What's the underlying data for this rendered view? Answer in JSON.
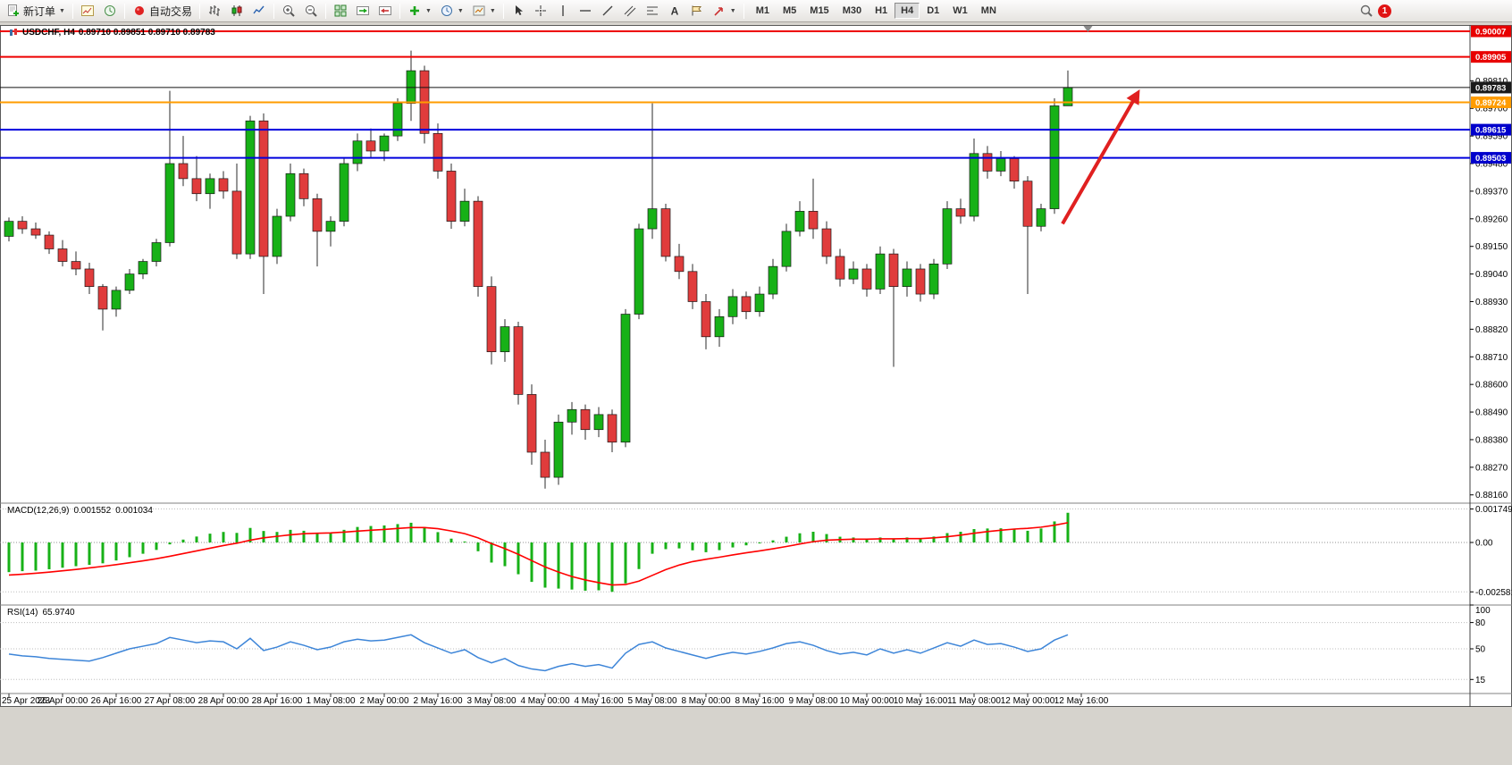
{
  "toolbar": {
    "new_order": "新订单",
    "auto_trading": "自动交易",
    "timeframes": [
      "M1",
      "M5",
      "M15",
      "M30",
      "H1",
      "H4",
      "D1",
      "W1",
      "MN"
    ],
    "active_timeframe": "H4",
    "notification_badge": "1"
  },
  "chart_header": {
    "symbol_period": "USDCHF, H4",
    "ohlc": "0.89710 0.89851 0.89710 0.89783"
  },
  "macd_panel": {
    "label": "MACD(12,26,9)",
    "main_value": "0.001552",
    "signal_value": "0.001034"
  },
  "rsi_panel": {
    "label": "RSI(14)",
    "value": "65.9740"
  },
  "chart_data": {
    "type": "candlestick",
    "symbol": "USDCHF",
    "timeframe": "H4",
    "current_ohlc": {
      "open": 0.8971,
      "high": 0.89851,
      "low": 0.8971,
      "close": 0.89783
    },
    "colors": {
      "bull": "#17b117",
      "bear": "#e03c3c",
      "wick": "#2b2b2b",
      "macd_hist": "#17b117",
      "macd_signal": "#ff0000",
      "rsi_line": "#3d85d8",
      "arrow": "#e02020"
    },
    "price_range_visible": [
      0.88127,
      0.90032
    ],
    "axis_ticks": [
      0.8981,
      0.897,
      0.8959,
      0.8948,
      0.8937,
      0.8926,
      0.8915,
      0.8904,
      0.8893,
      0.8882,
      0.8871,
      0.886,
      0.8849,
      0.8838,
      0.8827,
      0.8816
    ],
    "hlines": [
      {
        "price": 0.90007,
        "color": "#ee0000",
        "width": 2,
        "badge": "0.90007",
        "badge_bg": "#e80000"
      },
      {
        "price": 0.89905,
        "color": "#ee0000",
        "width": 2,
        "badge": "0.89905",
        "badge_bg": "#e80000"
      },
      {
        "price": 0.89724,
        "color": "#ff9c00",
        "width": 2,
        "badge": "0.89724",
        "badge_bg": "#ff9c00"
      },
      {
        "price": 0.89615,
        "color": "#0000dd",
        "width": 2,
        "badge": "0.89615",
        "badge_bg": "#0000cc"
      },
      {
        "price": 0.89503,
        "color": "#0000dd",
        "width": 2,
        "badge": "0.89503",
        "badge_bg": "#0000cc"
      },
      {
        "price": 0.89783,
        "color": "#111111",
        "width": 1,
        "badge": "0.89783",
        "badge_bg": "#1a1a1a"
      }
    ],
    "time_labels": [
      "25 Apr 2023",
      "26 Apr 00:00",
      "26 Apr 16:00",
      "27 Apr 08:00",
      "28 Apr 00:00",
      "28 Apr 16:00",
      "1 May 08:00",
      "2 May 00:00",
      "2 May 16:00",
      "3 May 08:00",
      "4 May 00:00",
      "4 May 16:00",
      "5 May 08:00",
      "8 May 00:00",
      "8 May 16:00",
      "9 May 08:00",
      "10 May 00:00",
      "10 May 16:00",
      "11 May 08:00",
      "12 May 00:00",
      "12 May 16:00"
    ],
    "candles": [
      [
        0.8919,
        0.89265,
        0.8917,
        0.8925
      ],
      [
        0.8925,
        0.8927,
        0.892,
        0.8922
      ],
      [
        0.8922,
        0.89245,
        0.8918,
        0.89195
      ],
      [
        0.89195,
        0.8921,
        0.8912,
        0.8914
      ],
      [
        0.8914,
        0.89175,
        0.8907,
        0.8909
      ],
      [
        0.8909,
        0.8913,
        0.89035,
        0.8906
      ],
      [
        0.8906,
        0.89085,
        0.8896,
        0.8899
      ],
      [
        0.8899,
        0.89,
        0.88815,
        0.889
      ],
      [
        0.889,
        0.8899,
        0.8887,
        0.88975
      ],
      [
        0.88975,
        0.8906,
        0.8896,
        0.8904
      ],
      [
        0.8904,
        0.891,
        0.8902,
        0.8909
      ],
      [
        0.8909,
        0.8918,
        0.8907,
        0.89165
      ],
      [
        0.89165,
        0.8977,
        0.8915,
        0.8948
      ],
      [
        0.8948,
        0.8959,
        0.8939,
        0.8942
      ],
      [
        0.8942,
        0.8951,
        0.8933,
        0.8936
      ],
      [
        0.8936,
        0.8944,
        0.893,
        0.8942
      ],
      [
        0.8942,
        0.8945,
        0.8934,
        0.8937
      ],
      [
        0.8937,
        0.8948,
        0.891,
        0.8912
      ],
      [
        0.8912,
        0.8967,
        0.891,
        0.8965
      ],
      [
        0.8965,
        0.8968,
        0.8896,
        0.8911
      ],
      [
        0.8911,
        0.893,
        0.8908,
        0.8927
      ],
      [
        0.8927,
        0.8948,
        0.8925,
        0.8944
      ],
      [
        0.8944,
        0.8946,
        0.8931,
        0.8934
      ],
      [
        0.8934,
        0.8936,
        0.8907,
        0.8921
      ],
      [
        0.8921,
        0.8927,
        0.8915,
        0.8925
      ],
      [
        0.8925,
        0.895,
        0.8923,
        0.8948
      ],
      [
        0.8948,
        0.896,
        0.8945,
        0.8957
      ],
      [
        0.8957,
        0.8962,
        0.895,
        0.8953
      ],
      [
        0.8953,
        0.896,
        0.8949,
        0.8959
      ],
      [
        0.8959,
        0.8974,
        0.8957,
        0.8972
      ],
      [
        0.8972,
        0.8993,
        0.8965,
        0.8985
      ],
      [
        0.8985,
        0.8987,
        0.8956,
        0.896
      ],
      [
        0.896,
        0.8964,
        0.8942,
        0.8945
      ],
      [
        0.8945,
        0.8948,
        0.8922,
        0.8925
      ],
      [
        0.8925,
        0.8938,
        0.8923,
        0.8933
      ],
      [
        0.8933,
        0.8935,
        0.8895,
        0.8899
      ],
      [
        0.8899,
        0.8903,
        0.8868,
        0.8873
      ],
      [
        0.8873,
        0.8886,
        0.8869,
        0.8883
      ],
      [
        0.8883,
        0.8885,
        0.8852,
        0.8856
      ],
      [
        0.8856,
        0.886,
        0.8828,
        0.8833
      ],
      [
        0.8833,
        0.8838,
        0.88185,
        0.8823
      ],
      [
        0.8823,
        0.8848,
        0.882,
        0.8845
      ],
      [
        0.8845,
        0.8853,
        0.884,
        0.885
      ],
      [
        0.885,
        0.8852,
        0.8838,
        0.8842
      ],
      [
        0.8842,
        0.8851,
        0.8839,
        0.8848
      ],
      [
        0.8848,
        0.885,
        0.8833,
        0.8837
      ],
      [
        0.8837,
        0.889,
        0.8835,
        0.8888
      ],
      [
        0.8888,
        0.8924,
        0.8886,
        0.8922
      ],
      [
        0.8922,
        0.8972,
        0.8918,
        0.893
      ],
      [
        0.893,
        0.8932,
        0.8909,
        0.8911
      ],
      [
        0.8911,
        0.8916,
        0.8902,
        0.8905
      ],
      [
        0.8905,
        0.8908,
        0.889,
        0.8893
      ],
      [
        0.8893,
        0.8896,
        0.8874,
        0.8879
      ],
      [
        0.8879,
        0.889,
        0.8875,
        0.8887
      ],
      [
        0.8887,
        0.8898,
        0.8884,
        0.8895
      ],
      [
        0.8895,
        0.8897,
        0.8886,
        0.8889
      ],
      [
        0.8889,
        0.8899,
        0.8887,
        0.8896
      ],
      [
        0.8896,
        0.891,
        0.8894,
        0.8907
      ],
      [
        0.8907,
        0.8924,
        0.8905,
        0.8921
      ],
      [
        0.8921,
        0.8933,
        0.8919,
        0.8929
      ],
      [
        0.8929,
        0.8942,
        0.8918,
        0.8922
      ],
      [
        0.8922,
        0.8925,
        0.8908,
        0.8911
      ],
      [
        0.8911,
        0.8914,
        0.8899,
        0.8902
      ],
      [
        0.8902,
        0.8909,
        0.89,
        0.8906
      ],
      [
        0.8906,
        0.8908,
        0.8895,
        0.8898
      ],
      [
        0.8898,
        0.8915,
        0.8896,
        0.8912
      ],
      [
        0.8912,
        0.8914,
        0.8867,
        0.8899
      ],
      [
        0.8899,
        0.8909,
        0.8895,
        0.8906
      ],
      [
        0.8906,
        0.8908,
        0.8893,
        0.8896
      ],
      [
        0.8896,
        0.891,
        0.8894,
        0.8908
      ],
      [
        0.8908,
        0.8933,
        0.8906,
        0.893
      ],
      [
        0.893,
        0.8934,
        0.8924,
        0.8927
      ],
      [
        0.8927,
        0.8958,
        0.8925,
        0.8952
      ],
      [
        0.8952,
        0.8955,
        0.8942,
        0.8945
      ],
      [
        0.8945,
        0.8953,
        0.8943,
        0.895
      ],
      [
        0.895,
        0.8951,
        0.8938,
        0.8941
      ],
      [
        0.8941,
        0.8943,
        0.8896,
        0.8923
      ],
      [
        0.8923,
        0.8932,
        0.8921,
        0.893
      ],
      [
        0.893,
        0.8974,
        0.8928,
        0.8971
      ],
      [
        0.8971,
        0.89851,
        0.8971,
        0.89783
      ]
    ],
    "macd": {
      "range_visible": [
        -0.003176,
        0.001961
      ],
      "levels": [
        {
          "value": 0.001749,
          "label": "0.001749",
          "line": true
        },
        {
          "value": 0,
          "label": "0.00",
          "line": true
        },
        {
          "value": -0.002581,
          "label": "-0.002581",
          "line": true
        }
      ],
      "histogram": [
        -0.00155,
        -0.0015,
        -0.00147,
        -0.0014,
        -0.00132,
        -0.00124,
        -0.00117,
        -0.00109,
        -0.00094,
        -0.00077,
        -0.00059,
        -0.00039,
        -0.0001,
        0.00015,
        0.00031,
        0.00046,
        0.00055,
        0.0005,
        0.00076,
        0.0006,
        0.00055,
        0.00066,
        0.00061,
        0.0005,
        0.00051,
        0.00066,
        0.00081,
        0.00086,
        0.00089,
        0.00096,
        0.00103,
        0.0008,
        0.00054,
        0.0002,
        5e-05,
        -0.00046,
        -0.00105,
        -0.00124,
        -0.00166,
        -0.00206,
        -0.00236,
        -0.00241,
        -0.00246,
        -0.00252,
        -0.0025,
        -0.00258,
        -0.00214,
        -0.00139,
        -0.00059,
        -0.00035,
        -0.00031,
        -0.00041,
        -0.00051,
        -0.0004,
        -0.00026,
        -0.00015,
        -5e-05,
        0.00011,
        0.0003,
        0.00048,
        0.00056,
        0.00044,
        0.0003,
        0.00026,
        0.00018,
        0.00026,
        0.0002,
        0.00026,
        0.00022,
        0.00031,
        0.00049,
        0.00056,
        0.0007,
        0.00073,
        0.00074,
        0.0007,
        0.00061,
        0.00073,
        0.0011,
        0.001552
      ],
      "signal": [
        -0.0017,
        -0.00166,
        -0.00161,
        -0.00155,
        -0.00148,
        -0.00141,
        -0.00133,
        -0.00125,
        -0.00116,
        -0.00106,
        -0.00096,
        -0.00085,
        -0.00072,
        -0.00058,
        -0.00044,
        -0.0003,
        -0.00016,
        -4e-05,
        0.00012,
        0.00024,
        0.00032,
        0.0004,
        0.00046,
        0.00048,
        0.0005,
        0.00054,
        0.00059,
        0.00064,
        0.00068,
        0.00073,
        0.00078,
        0.00078,
        0.00072,
        0.0006,
        0.00046,
        0.00024,
        -6e-05,
        -0.00032,
        -0.00062,
        -0.00095,
        -0.00128,
        -0.00155,
        -0.00178,
        -0.00196,
        -0.0021,
        -0.00222,
        -0.0022,
        -0.00202,
        -0.00172,
        -0.00142,
        -0.00118,
        -0.001,
        -0.00088,
        -0.00077,
        -0.00065,
        -0.00054,
        -0.00044,
        -0.00033,
        -0.00021,
        -8e-05,
        4e-05,
        0.00012,
        0.00015,
        0.00017,
        0.00017,
        0.00019,
        0.00019,
        0.0002,
        0.0002,
        0.00024,
        0.0003,
        0.00038,
        0.00048,
        0.00057,
        0.00064,
        0.0007,
        0.00074,
        0.0008,
        0.0009,
        0.001034
      ]
    },
    "rsi": {
      "range": [
        0,
        100
      ],
      "levels": [
        {
          "value": 100,
          "label": "100",
          "line": false
        },
        {
          "value": 80,
          "label": "80",
          "line": true
        },
        {
          "value": 50,
          "label": "50",
          "line": true
        },
        {
          "value": 15,
          "label": "15",
          "line": true
        }
      ],
      "values": [
        44,
        42,
        41,
        39,
        38,
        37,
        36,
        40,
        45,
        50,
        53,
        56,
        63,
        60,
        57,
        59,
        58,
        50,
        62,
        48,
        52,
        58,
        54,
        49,
        52,
        58,
        61,
        59,
        60,
        63,
        66,
        57,
        51,
        45,
        49,
        40,
        34,
        39,
        31,
        27,
        25,
        30,
        33,
        30,
        32,
        28,
        45,
        55,
        58,
        51,
        47,
        43,
        39,
        43,
        46,
        44,
        47,
        51,
        56,
        58,
        54,
        48,
        44,
        46,
        43,
        50,
        45,
        49,
        45,
        51,
        57,
        53,
        60,
        55,
        56,
        52,
        47,
        50,
        60,
        66
      ]
    },
    "arrow": {
      "from": {
        "bar": 78.6,
        "price": 0.8924
      },
      "to": {
        "bar": 84.2,
        "price": 0.8976
      }
    },
    "shift_marker_bar": 80.5
  }
}
